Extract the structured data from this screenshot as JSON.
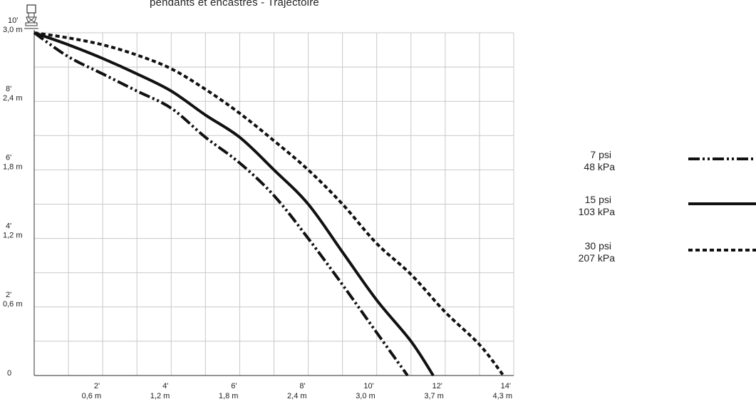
{
  "title": "pendants et encastrés - Trajectoire",
  "chart_data": {
    "type": "line",
    "title": "pendants et encastrés - Trajectoire",
    "xlim": [
      0,
      14
    ],
    "ylim": [
      0,
      10
    ],
    "grid": true,
    "x_ticks": [
      {
        "value": 2,
        "ft": "2'",
        "m": "0,6 m"
      },
      {
        "value": 4,
        "ft": "4'",
        "m": "1,2 m"
      },
      {
        "value": 6,
        "ft": "6'",
        "m": "1,8 m"
      },
      {
        "value": 8,
        "ft": "8'",
        "m": "2,4 m"
      },
      {
        "value": 10,
        "ft": "10'",
        "m": "3,0 m"
      },
      {
        "value": 12,
        "ft": "12'",
        "m": "3,7 m"
      },
      {
        "value": 14,
        "ft": "14'",
        "m": "4,3 m"
      }
    ],
    "y_ticks": [
      {
        "value": 0,
        "ft": "0",
        "m": ""
      },
      {
        "value": 2,
        "ft": "2'",
        "m": "0,6 m"
      },
      {
        "value": 4,
        "ft": "4'",
        "m": "1,2 m"
      },
      {
        "value": 6,
        "ft": "6'",
        "m": "1,8 m"
      },
      {
        "value": 8,
        "ft": "8'",
        "m": "2,4 m"
      },
      {
        "value": 10,
        "ft": "10'",
        "m": "3,0 m"
      }
    ],
    "legend_position": "right",
    "series": [
      {
        "name": "7 psi",
        "name2": "48 kPa",
        "style": "dash-dot-dot",
        "points": [
          [
            0,
            10
          ],
          [
            1,
            9.3
          ],
          [
            2,
            8.8
          ],
          [
            3,
            8.3
          ],
          [
            4,
            7.8
          ],
          [
            5,
            6.95
          ],
          [
            6,
            6.2
          ],
          [
            7,
            5.25
          ],
          [
            8,
            4.0
          ],
          [
            9,
            2.65
          ],
          [
            10,
            1.25
          ],
          [
            10.9,
            0
          ]
        ]
      },
      {
        "name": "15 psi",
        "name2": "103 kPa",
        "style": "solid",
        "points": [
          [
            0,
            10
          ],
          [
            1,
            9.65
          ],
          [
            2,
            9.25
          ],
          [
            3,
            8.8
          ],
          [
            4,
            8.3
          ],
          [
            5,
            7.6
          ],
          [
            6,
            6.95
          ],
          [
            7,
            6.0
          ],
          [
            8,
            5.0
          ],
          [
            9,
            3.6
          ],
          [
            10,
            2.2
          ],
          [
            11,
            1.0
          ],
          [
            11.65,
            0
          ]
        ]
      },
      {
        "name": "30 psi",
        "name2": "207 kPa",
        "style": "dotted",
        "points": [
          [
            0,
            10
          ],
          [
            1,
            9.85
          ],
          [
            2,
            9.65
          ],
          [
            3,
            9.35
          ],
          [
            4,
            8.95
          ],
          [
            5,
            8.35
          ],
          [
            6,
            7.65
          ],
          [
            7,
            6.85
          ],
          [
            8,
            6.0
          ],
          [
            9,
            5.0
          ],
          [
            10,
            3.85
          ],
          [
            11,
            2.95
          ],
          [
            12,
            1.85
          ],
          [
            13,
            0.9
          ],
          [
            13.7,
            0
          ]
        ]
      }
    ]
  }
}
